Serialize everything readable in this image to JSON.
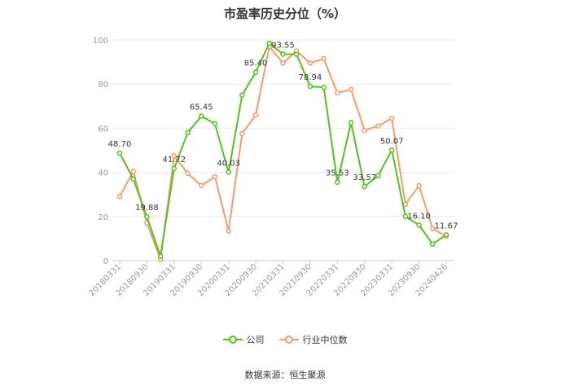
{
  "chart_data": {
    "type": "line",
    "title": "市盈率历史分位（%）",
    "source": "数据来源：恒生聚源",
    "ylim": [
      0,
      100
    ],
    "yticks": [
      "0",
      "20",
      "40",
      "60",
      "80",
      "100"
    ],
    "x_tick_labels": [
      "20180331",
      "20180930",
      "20190331",
      "20190930",
      "20200331",
      "20200930",
      "20210331",
      "20210930",
      "20220331",
      "20220930",
      "20230331",
      "20230930",
      "20240426"
    ],
    "grid": true,
    "legend_position": "bottom",
    "series": [
      {
        "name": "公司",
        "color": "#52c41a",
        "values": [
          48.7,
          37.0,
          19.88,
          2.0,
          41.72,
          58.0,
          65.45,
          62.0,
          40.03,
          75.0,
          85.4,
          98.5,
          93.55,
          93.5,
          78.94,
          78.5,
          35.53,
          62.5,
          33.57,
          38.5,
          50.07,
          20.0,
          16.1,
          7.5,
          11.67
        ],
        "labels": [
          "48.70",
          "",
          "19.88",
          "",
          "41.72",
          "",
          "65.45",
          "",
          "40.03",
          "",
          "85.40",
          "",
          "93.55",
          "",
          "78.94",
          "",
          "35.53",
          "",
          "33.57",
          "",
          "50.07",
          "",
          "16.10",
          "",
          "11.67"
        ]
      },
      {
        "name": "行业中位数",
        "color": "#f79a6b",
        "values": [
          29.0,
          40.5,
          17.0,
          0.5,
          47.5,
          39.5,
          34.0,
          38.0,
          13.5,
          57.5,
          66.0,
          97.0,
          89.5,
          95.0,
          89.5,
          91.5,
          76.0,
          77.5,
          59.0,
          61.0,
          64.5,
          25.5,
          34.0,
          14.5,
          11.0
        ]
      }
    ]
  }
}
